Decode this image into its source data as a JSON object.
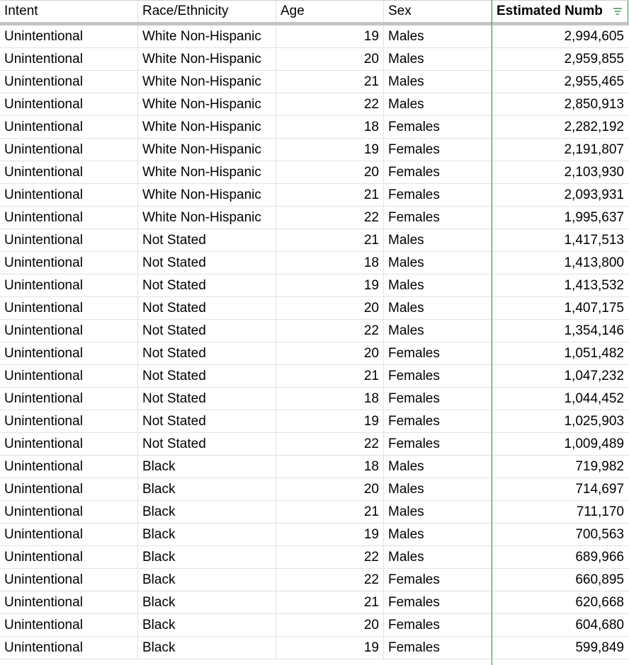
{
  "colors": {
    "selected_column_border": "#3f8e56",
    "filter_icon": "#3f8e56"
  },
  "columns": {
    "intent": "Intent",
    "race": "Race/Ethnicity",
    "age": "Age",
    "sex": "Sex",
    "estimated": "Estimated Numb"
  },
  "icons": {
    "filter": "filter-icon"
  },
  "rows": [
    {
      "intent": "Unintentional",
      "race": "White Non-Hispanic",
      "age": "19",
      "sex": "Males",
      "estimated": "2,994,605"
    },
    {
      "intent": "Unintentional",
      "race": "White Non-Hispanic",
      "age": "20",
      "sex": "Males",
      "estimated": "2,959,855"
    },
    {
      "intent": "Unintentional",
      "race": "White Non-Hispanic",
      "age": "21",
      "sex": "Males",
      "estimated": "2,955,465"
    },
    {
      "intent": "Unintentional",
      "race": "White Non-Hispanic",
      "age": "22",
      "sex": "Males",
      "estimated": "2,850,913"
    },
    {
      "intent": "Unintentional",
      "race": "White Non-Hispanic",
      "age": "18",
      "sex": "Females",
      "estimated": "2,282,192"
    },
    {
      "intent": "Unintentional",
      "race": "White Non-Hispanic",
      "age": "19",
      "sex": "Females",
      "estimated": "2,191,807"
    },
    {
      "intent": "Unintentional",
      "race": "White Non-Hispanic",
      "age": "20",
      "sex": "Females",
      "estimated": "2,103,930"
    },
    {
      "intent": "Unintentional",
      "race": "White Non-Hispanic",
      "age": "21",
      "sex": "Females",
      "estimated": "2,093,931"
    },
    {
      "intent": "Unintentional",
      "race": "White Non-Hispanic",
      "age": "22",
      "sex": "Females",
      "estimated": "1,995,637"
    },
    {
      "intent": "Unintentional",
      "race": "Not Stated",
      "age": "21",
      "sex": "Males",
      "estimated": "1,417,513"
    },
    {
      "intent": "Unintentional",
      "race": "Not Stated",
      "age": "18",
      "sex": "Males",
      "estimated": "1,413,800"
    },
    {
      "intent": "Unintentional",
      "race": "Not Stated",
      "age": "19",
      "sex": "Males",
      "estimated": "1,413,532"
    },
    {
      "intent": "Unintentional",
      "race": "Not Stated",
      "age": "20",
      "sex": "Males",
      "estimated": "1,407,175"
    },
    {
      "intent": "Unintentional",
      "race": "Not Stated",
      "age": "22",
      "sex": "Males",
      "estimated": "1,354,146"
    },
    {
      "intent": "Unintentional",
      "race": "Not Stated",
      "age": "20",
      "sex": "Females",
      "estimated": "1,051,482"
    },
    {
      "intent": "Unintentional",
      "race": "Not Stated",
      "age": "21",
      "sex": "Females",
      "estimated": "1,047,232"
    },
    {
      "intent": "Unintentional",
      "race": "Not Stated",
      "age": "18",
      "sex": "Females",
      "estimated": "1,044,452"
    },
    {
      "intent": "Unintentional",
      "race": "Not Stated",
      "age": "19",
      "sex": "Females",
      "estimated": "1,025,903"
    },
    {
      "intent": "Unintentional",
      "race": "Not Stated",
      "age": "22",
      "sex": "Females",
      "estimated": "1,009,489"
    },
    {
      "intent": "Unintentional",
      "race": "Black",
      "age": "18",
      "sex": "Males",
      "estimated": "719,982"
    },
    {
      "intent": "Unintentional",
      "race": "Black",
      "age": "20",
      "sex": "Males",
      "estimated": "714,697"
    },
    {
      "intent": "Unintentional",
      "race": "Black",
      "age": "21",
      "sex": "Males",
      "estimated": "711,170"
    },
    {
      "intent": "Unintentional",
      "race": "Black",
      "age": "19",
      "sex": "Males",
      "estimated": "700,563"
    },
    {
      "intent": "Unintentional",
      "race": "Black",
      "age": "22",
      "sex": "Males",
      "estimated": "689,966"
    },
    {
      "intent": "Unintentional",
      "race": "Black",
      "age": "22",
      "sex": "Females",
      "estimated": "660,895"
    },
    {
      "intent": "Unintentional",
      "race": "Black",
      "age": "21",
      "sex": "Females",
      "estimated": "620,668"
    },
    {
      "intent": "Unintentional",
      "race": "Black",
      "age": "20",
      "sex": "Females",
      "estimated": "604,680"
    },
    {
      "intent": "Unintentional",
      "race": "Black",
      "age": "19",
      "sex": "Females",
      "estimated": "599,849"
    }
  ]
}
